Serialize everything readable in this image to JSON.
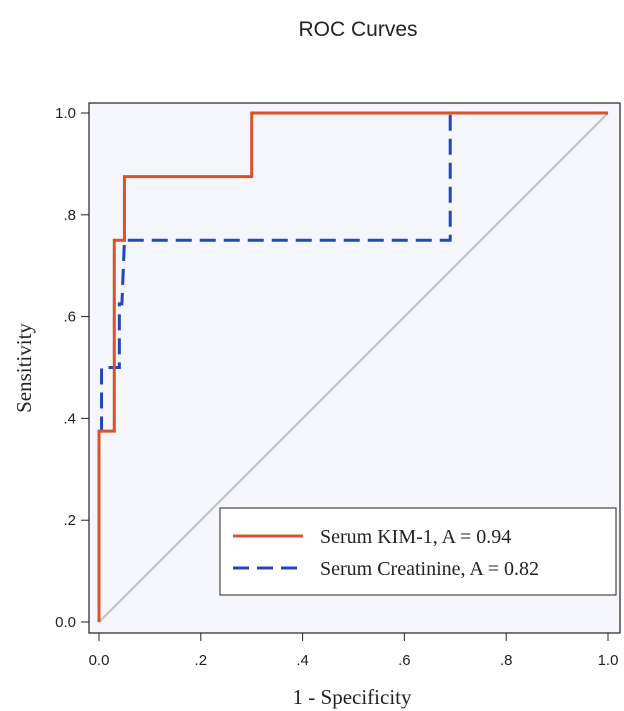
{
  "chart_data": {
    "type": "line",
    "title": "ROC Curves",
    "xlabel": "1 - Specificity",
    "ylabel": "Sensitivity",
    "xlim": [
      0,
      1
    ],
    "ylim": [
      0,
      1
    ],
    "x_ticks": [
      0,
      0.2,
      0.4,
      0.6,
      0.8,
      1
    ],
    "x_tick_labels": [
      "0.0",
      ".2",
      ".4",
      ".6",
      ".8",
      "1.0"
    ],
    "y_ticks": [
      0,
      0.2,
      0.4,
      0.6,
      0.8,
      1
    ],
    "y_tick_labels": [
      "0.0",
      ".2",
      ".4",
      ".6",
      ".8",
      "1.0"
    ],
    "grid": false,
    "legend_position": "bottom-right",
    "series": [
      {
        "name": "Serum KIM-1, A = 0.94",
        "color": "#d8532b",
        "style": "solid",
        "points": [
          [
            0,
            0
          ],
          [
            0,
            0.375
          ],
          [
            0.03,
            0.375
          ],
          [
            0.03,
            0.75
          ],
          [
            0.05,
            0.75
          ],
          [
            0.05,
            0.875
          ],
          [
            0.3,
            0.875
          ],
          [
            0.3,
            1.0
          ],
          [
            1.0,
            1.0
          ]
        ]
      },
      {
        "name": "Serum Creatinine, A = 0.82",
        "color": "#2446b8",
        "style": "dashed",
        "points": [
          [
            0,
            0
          ],
          [
            0,
            0.375
          ],
          [
            0.005,
            0.375
          ],
          [
            0.005,
            0.5
          ],
          [
            0.04,
            0.5
          ],
          [
            0.04,
            0.625
          ],
          [
            0.045,
            0.625
          ],
          [
            0.05,
            0.75
          ],
          [
            0.69,
            0.75
          ],
          [
            0.69,
            1.0
          ],
          [
            1.0,
            1.0
          ]
        ]
      },
      {
        "name": "",
        "color": "#c4c4c4",
        "style": "solid",
        "points": [
          [
            0,
            0
          ],
          [
            1,
            1
          ]
        ]
      }
    ]
  }
}
